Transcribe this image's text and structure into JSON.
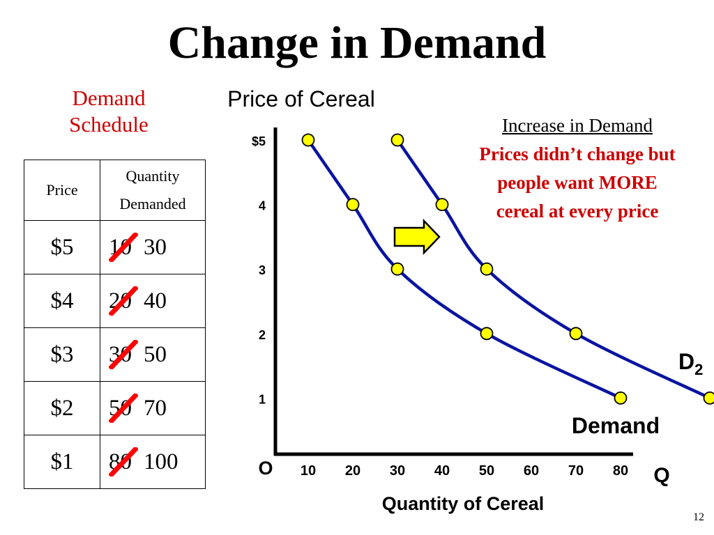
{
  "slide": {
    "title": "Change in Demand",
    "page_number": "12"
  },
  "schedule": {
    "title_line1": "Demand",
    "title_line2": "Schedule",
    "header_price": "Price",
    "header_qty_line1": "Quantity",
    "header_qty_line2": "Demanded",
    "rows": [
      {
        "price": "$5",
        "old": "10",
        "new": "30"
      },
      {
        "price": "$4",
        "old": "20",
        "new": "40"
      },
      {
        "price": "$3",
        "old": "30",
        "new": "50"
      },
      {
        "price": "$2",
        "old": "50",
        "new": "70"
      },
      {
        "price": "$1",
        "old": "80",
        "new": "100"
      }
    ]
  },
  "callout": {
    "heading": "Increase in Demand",
    "line1": "Prices didn’t change but",
    "line2": "people want MORE",
    "line3": "cereal at every price"
  },
  "colors": {
    "curve": "#0a14a0",
    "point_fill": "#ffff00",
    "emphasis_red": "#cc0000",
    "strike_red": "#ff0000",
    "arrow_fill": "#ffff00"
  },
  "chart_data": {
    "type": "line",
    "title": "Price of Cereal",
    "xlabel": "Quantity of Cereal",
    "ylabel": "",
    "x_axis_end_label": "Q",
    "origin_label": "O",
    "x_ticks": [
      10,
      20,
      30,
      40,
      50,
      60,
      70,
      80
    ],
    "y_ticks": [
      {
        "value": 5,
        "label": "$5"
      },
      {
        "value": 4,
        "label": "4"
      },
      {
        "value": 3,
        "label": "3"
      },
      {
        "value": 2,
        "label": "2"
      },
      {
        "value": 1,
        "label": "1"
      }
    ],
    "xlim": [
      0,
      90
    ],
    "ylim": [
      0,
      5
    ],
    "grid": false,
    "series": [
      {
        "name": "Demand",
        "label_main": "Demand",
        "points": [
          [
            10,
            5
          ],
          [
            20,
            4
          ],
          [
            30,
            3
          ],
          [
            50,
            2
          ],
          [
            80,
            1
          ]
        ]
      },
      {
        "name": "D2",
        "label_main": "D",
        "label_sub": "2",
        "points": [
          [
            30,
            5
          ],
          [
            40,
            4
          ],
          [
            50,
            3
          ],
          [
            70,
            2
          ],
          [
            100,
            1
          ]
        ]
      }
    ],
    "shift_arrow": "right"
  }
}
